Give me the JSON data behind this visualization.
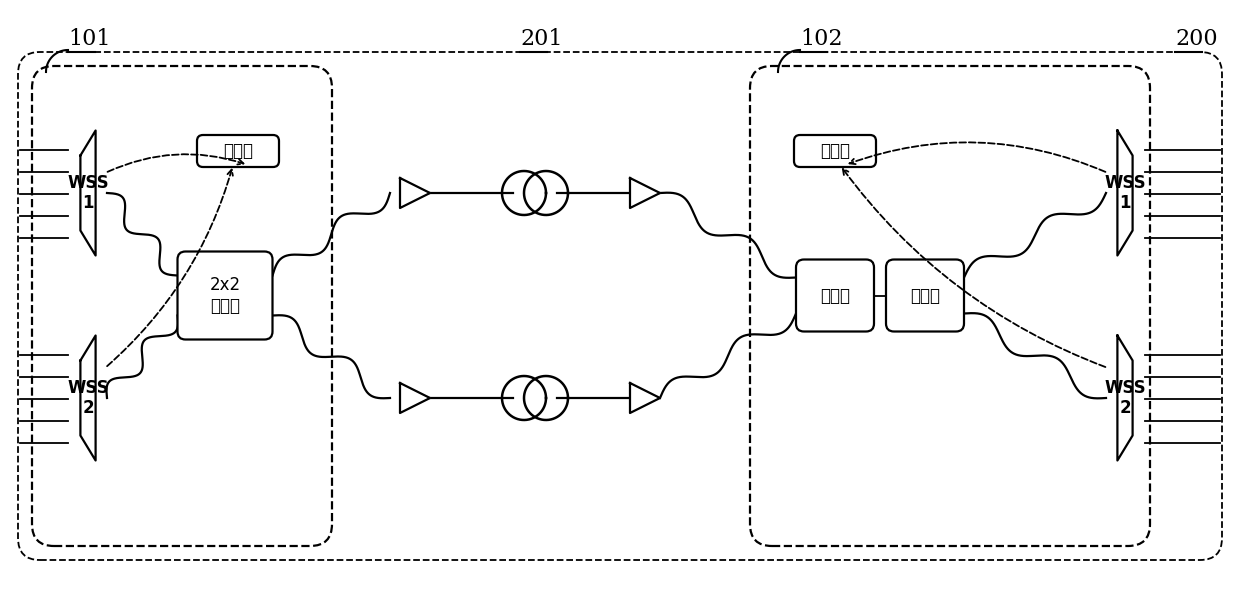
{
  "bg_color": "#ffffff",
  "line_color": "#000000",
  "labels": {
    "controller_left": "控制器",
    "controller_right": "控制器",
    "coupler": "2x2\n耦合器",
    "wss1_left": "WSS\n1",
    "wss2_left": "WSS\n2",
    "wss1_right": "WSS\n1",
    "wss2_right": "WSS\n2",
    "optical_switch": "光开关",
    "splitter": "分光器",
    "ref101": "101",
    "ref102": "102",
    "ref200": "200",
    "ref201": "201"
  },
  "font_size_main": 13,
  "font_size_ref": 16
}
